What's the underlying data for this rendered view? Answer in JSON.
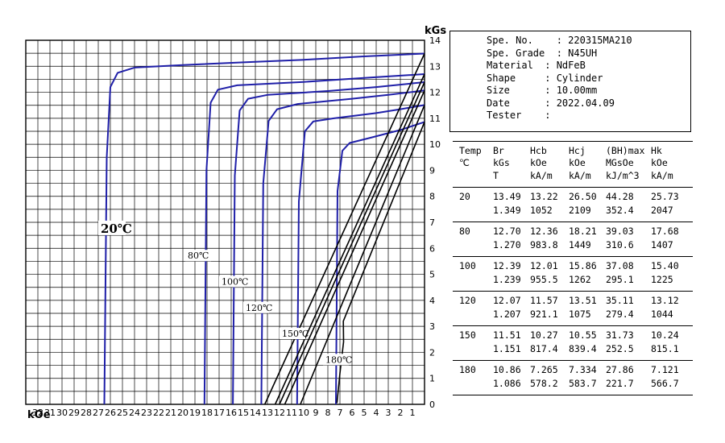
{
  "chart_data": {
    "type": "line",
    "x_axis_label": "kOe",
    "y_axis_label": "kGs",
    "x_tick_labels": [
      "32",
      "31",
      "30",
      "29",
      "28",
      "27",
      "26",
      "25",
      "24",
      "23",
      "22",
      "21",
      "20",
      "19",
      "18",
      "17",
      "16",
      "15",
      "14",
      "13",
      "12",
      "11",
      "10",
      "9",
      "8",
      "7",
      "6",
      "5",
      "4",
      "3",
      "2",
      "1"
    ],
    "y_tick_labels": [
      "0",
      "1",
      "2",
      "3",
      "4",
      "5",
      "6",
      "7",
      "8",
      "9",
      "10",
      "11",
      "12",
      "13",
      "14"
    ],
    "xlim": [
      33,
      0
    ],
    "ylim": [
      0,
      14
    ],
    "x_direction": "reversed (demagnetizing field increases to the left)",
    "grid": true,
    "series": [
      {
        "name": "20℃",
        "color": "#1f1fa8",
        "type": "J-H demagnetization curve",
        "Br": 13.49,
        "Hcj": 26.5,
        "points": [
          [
            26.5,
            0
          ],
          [
            26.3,
            9.5
          ],
          [
            26.0,
            12.2
          ],
          [
            25.4,
            12.75
          ],
          [
            24,
            12.95
          ],
          [
            20,
            13.05
          ],
          [
            15,
            13.15
          ],
          [
            10,
            13.25
          ],
          [
            5,
            13.38
          ],
          [
            0,
            13.49
          ]
        ]
      },
      {
        "name": "80℃",
        "color": "#1f1fa8",
        "type": "J-H demagnetization curve",
        "Br": 12.7,
        "Hcj": 18.21,
        "points": [
          [
            18.21,
            0
          ],
          [
            18.05,
            9.0
          ],
          [
            17.7,
            11.6
          ],
          [
            17.1,
            12.1
          ],
          [
            15.5,
            12.27
          ],
          [
            10,
            12.4
          ],
          [
            5,
            12.55
          ],
          [
            0,
            12.7
          ]
        ]
      },
      {
        "name": "100℃",
        "color": "#1f1fa8",
        "type": "J-H demagnetization curve",
        "Br": 12.39,
        "Hcj": 15.86,
        "points": [
          [
            15.86,
            0
          ],
          [
            15.7,
            8.8
          ],
          [
            15.3,
            11.3
          ],
          [
            14.6,
            11.75
          ],
          [
            13,
            11.9
          ],
          [
            8,
            12.05
          ],
          [
            4,
            12.2
          ],
          [
            0,
            12.39
          ]
        ]
      },
      {
        "name": "120℃",
        "color": "#1f1fa8",
        "type": "J-H demagnetization curve",
        "Br": 12.07,
        "Hcj": 13.51,
        "points": [
          [
            13.51,
            0
          ],
          [
            13.35,
            8.5
          ],
          [
            12.9,
            10.9
          ],
          [
            12.2,
            11.35
          ],
          [
            10.5,
            11.55
          ],
          [
            6,
            11.75
          ],
          [
            3,
            11.9
          ],
          [
            0,
            12.07
          ]
        ]
      },
      {
        "name": "150℃",
        "color": "#1f1fa8",
        "type": "J-H demagnetization curve",
        "Br": 11.51,
        "Hcj": 10.55,
        "points": [
          [
            10.55,
            0
          ],
          [
            10.4,
            7.8
          ],
          [
            9.9,
            10.5
          ],
          [
            9.2,
            10.88
          ],
          [
            7.5,
            11.0
          ],
          [
            4,
            11.2
          ],
          [
            2,
            11.35
          ],
          [
            0,
            11.51
          ]
        ]
      },
      {
        "name": "180℃",
        "color": "#1f1fa8",
        "type": "J-H demagnetization curve",
        "Br": 10.86,
        "Hcj": 7.334,
        "points": [
          [
            7.334,
            0
          ],
          [
            7.2,
            8.2
          ],
          [
            6.8,
            9.75
          ],
          [
            6.2,
            10.05
          ],
          [
            4.5,
            10.25
          ],
          [
            2,
            10.55
          ],
          [
            0,
            10.86
          ]
        ]
      },
      {
        "name": "20℃",
        "color": "#000000",
        "type": "B-H normal curve",
        "points": [
          [
            13.22,
            0
          ],
          [
            0,
            13.49
          ]
        ]
      },
      {
        "name": "80℃",
        "color": "#000000",
        "type": "B-H normal curve",
        "points": [
          [
            12.36,
            0
          ],
          [
            0,
            12.7
          ]
        ]
      },
      {
        "name": "100℃",
        "color": "#000000",
        "type": "B-H normal curve",
        "points": [
          [
            12.01,
            0
          ],
          [
            0,
            12.39
          ]
        ]
      },
      {
        "name": "120℃",
        "color": "#000000",
        "type": "B-H normal curve",
        "points": [
          [
            11.57,
            0
          ],
          [
            0,
            12.07
          ]
        ]
      },
      {
        "name": "150℃",
        "color": "#000000",
        "type": "B-H normal curve",
        "points": [
          [
            10.27,
            0
          ],
          [
            0,
            11.51
          ]
        ]
      },
      {
        "name": "180℃",
        "color": "#000000",
        "type": "B-H normal curve",
        "points": [
          [
            7.25,
            0.05
          ],
          [
            7.0,
            1.2
          ],
          [
            6.7,
            2.4
          ],
          [
            6.72,
            3.2
          ],
          [
            0,
            10.86
          ]
        ]
      }
    ],
    "curve_labels": [
      {
        "text": "20℃",
        "x": 26.8,
        "y": 6.6,
        "big": true
      },
      {
        "text": "80℃",
        "x": 19.6,
        "y": 5.6,
        "big": false
      },
      {
        "text": "100℃",
        "x": 16.8,
        "y": 4.6,
        "big": false
      },
      {
        "text": "120℃",
        "x": 14.8,
        "y": 3.6,
        "big": false
      },
      {
        "text": "150℃",
        "x": 11.8,
        "y": 2.6,
        "big": false
      },
      {
        "text": "180℃",
        "x": 8.2,
        "y": 1.6,
        "big": false
      }
    ]
  },
  "specimen_info": [
    "Spe. No.    : 220315MA210",
    "Spe. Grade  : N45UH",
    "Material  : NdFeB",
    "Shape     : Cylinder",
    "Size      : 10.00mm",
    "Date      : 2022.04.09",
    "Tester    :"
  ],
  "results_table": {
    "columns": [
      {
        "h1": "Temp",
        "h2": "℃",
        "h3": ""
      },
      {
        "h1": "Br",
        "h2": "kGs",
        "h3": "T"
      },
      {
        "h1": "Hcb",
        "h2": "kOe",
        "h3": "kA/m"
      },
      {
        "h1": "Hcj",
        "h2": "kOe",
        "h3": "kA/m"
      },
      {
        "h1": "(BH)max",
        "h2": "MGsOe",
        "h3": "kJ/m^3"
      },
      {
        "h1": "Hk",
        "h2": "kOe",
        "h3": "kA/m"
      }
    ],
    "rows": [
      {
        "temp": "20",
        "line1": [
          "13.49",
          "13.22",
          "26.50",
          "44.28",
          "25.73"
        ],
        "line2": [
          "1.349",
          "1052",
          "2109",
          "352.4",
          "2047"
        ]
      },
      {
        "temp": "80",
        "line1": [
          "12.70",
          "12.36",
          "18.21",
          "39.03",
          "17.68"
        ],
        "line2": [
          "1.270",
          "983.8",
          "1449",
          "310.6",
          "1407"
        ]
      },
      {
        "temp": "100",
        "line1": [
          "12.39",
          "12.01",
          "15.86",
          "37.08",
          "15.40"
        ],
        "line2": [
          "1.239",
          "955.5",
          "1262",
          "295.1",
          "1225"
        ]
      },
      {
        "temp": "120",
        "line1": [
          "12.07",
          "11.57",
          "13.51",
          "35.11",
          "13.12"
        ],
        "line2": [
          "1.207",
          "921.1",
          "1075",
          "279.4",
          "1044"
        ]
      },
      {
        "temp": "150",
        "line1": [
          "11.51",
          "10.27",
          "10.55",
          "31.73",
          "10.24"
        ],
        "line2": [
          "1.151",
          "817.4",
          "839.4",
          "252.5",
          "815.1"
        ]
      },
      {
        "temp": "180",
        "line1": [
          "10.86",
          "7.265",
          "7.334",
          "27.86",
          "7.121"
        ],
        "line2": [
          "1.086",
          "578.2",
          "583.7",
          "221.7",
          "566.7"
        ]
      }
    ]
  }
}
